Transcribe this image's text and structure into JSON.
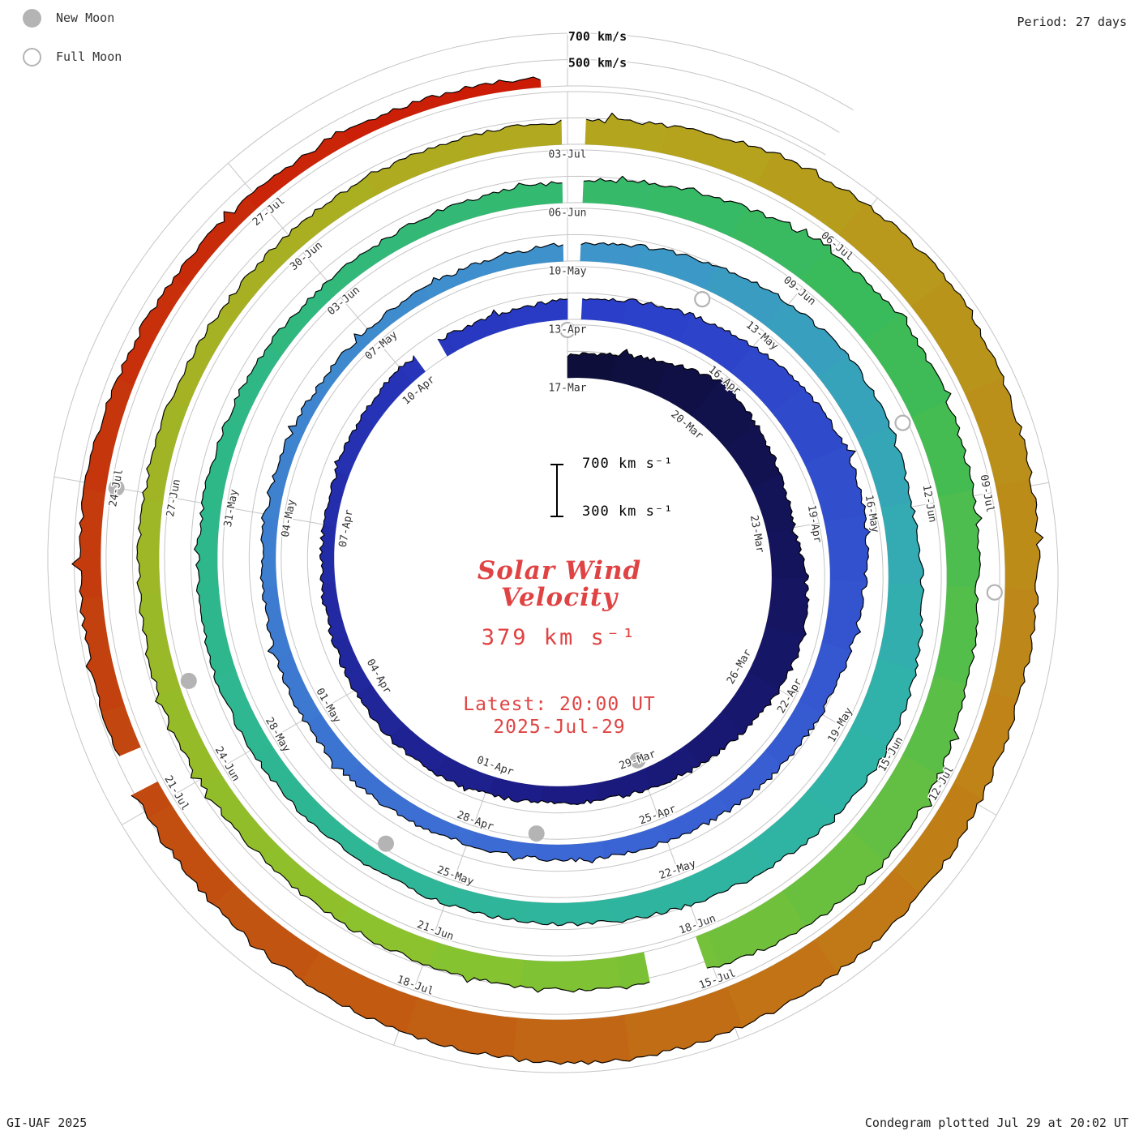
{
  "legend": {
    "new_moon": "New Moon",
    "full_moon": "Full Moon"
  },
  "header": {
    "period": "Period: 27 days"
  },
  "footer": {
    "left": "GI-UAF 2025",
    "right": "Condegram plotted Jul 29 at 20:02 UT"
  },
  "scale_bar": {
    "top": "700 km s⁻¹",
    "bottom": "300 km s⁻¹"
  },
  "center": {
    "title_line1": "Solar Wind",
    "title_line2": "Velocity",
    "value": "379 km s⁻¹",
    "latest_line1": "Latest: 20:00 UT",
    "latest_line2": "2025-Jul-29"
  },
  "chart_data": {
    "type": "spiral-polar-condegram",
    "title": "Solar Wind Velocity",
    "units": "km/s",
    "year": 2025,
    "period_days": 27,
    "start_label": "17-Mar",
    "end_label": "29-Jul",
    "latest": {
      "value_km_s": 379,
      "time_ut": "20:00 UT",
      "date": "2025-Jul-29"
    },
    "radial_axis": {
      "min": 300,
      "max": 700,
      "ring_values": [
        300,
        500,
        700
      ],
      "ring_text": [
        "700 km/s",
        "500 km/s"
      ]
    },
    "date_labels": [
      {
        "label": "17-Mar",
        "day": 0
      },
      {
        "label": "20-Mar",
        "day": 3
      },
      {
        "label": "23-Mar",
        "day": 6
      },
      {
        "label": "26-Mar",
        "day": 9
      },
      {
        "label": "29-Mar",
        "day": 12
      },
      {
        "label": "01-Apr",
        "day": 15
      },
      {
        "label": "04-Apr",
        "day": 18
      },
      {
        "label": "07-Apr",
        "day": 21
      },
      {
        "label": "10-Apr",
        "day": 24
      },
      {
        "label": "13-Apr",
        "day": 27
      },
      {
        "label": "16-Apr",
        "day": 30
      },
      {
        "label": "19-Apr",
        "day": 33
      },
      {
        "label": "22-Apr",
        "day": 36
      },
      {
        "label": "25-Apr",
        "day": 39
      },
      {
        "label": "28-Apr",
        "day": 42
      },
      {
        "label": "01-May",
        "day": 45
      },
      {
        "label": "04-May",
        "day": 48
      },
      {
        "label": "07-May",
        "day": 51
      },
      {
        "label": "10-May",
        "day": 54
      },
      {
        "label": "13-May",
        "day": 57
      },
      {
        "label": "16-May",
        "day": 60
      },
      {
        "label": "19-May",
        "day": 63
      },
      {
        "label": "22-May",
        "day": 66
      },
      {
        "label": "25-May",
        "day": 69
      },
      {
        "label": "28-May",
        "day": 72
      },
      {
        "label": "31-May",
        "day": 75
      },
      {
        "label": "03-Jun",
        "day": 78
      },
      {
        "label": "06-Jun",
        "day": 81
      },
      {
        "label": "09-Jun",
        "day": 84
      },
      {
        "label": "12-Jun",
        "day": 87
      },
      {
        "label": "15-Jun",
        "day": 90
      },
      {
        "label": "18-Jun",
        "day": 93
      },
      {
        "label": "21-Jun",
        "day": 96
      },
      {
        "label": "24-Jun",
        "day": 99
      },
      {
        "label": "27-Jun",
        "day": 102
      },
      {
        "label": "30-Jun",
        "day": 105
      },
      {
        "label": "03-Jul",
        "day": 108
      },
      {
        "label": "06-Jul",
        "day": 111
      },
      {
        "label": "09-Jul",
        "day": 114
      },
      {
        "label": "12-Jul",
        "day": 117
      },
      {
        "label": "15-Jul",
        "day": 120
      },
      {
        "label": "18-Jul",
        "day": 123
      },
      {
        "label": "21-Jul",
        "day": 126
      },
      {
        "label": "24-Jul",
        "day": 129
      },
      {
        "label": "27-Jul",
        "day": 132
      }
    ],
    "daily_velocity_km_s": [
      470,
      500,
      560,
      640,
      590,
      540,
      500,
      560,
      600,
      570,
      520,
      480,
      450,
      430,
      420,
      440,
      460,
      450,
      430,
      410,
      400,
      390,
      400,
      420,
      440,
      430,
      420,
      450,
      480,
      520,
      560,
      600,
      640,
      610,
      560,
      520,
      490,
      470,
      450,
      430,
      420,
      410,
      400,
      420,
      440,
      430,
      420,
      410,
      400,
      390,
      380,
      380,
      390,
      400,
      430,
      460,
      500,
      540,
      580,
      560,
      530,
      560,
      600,
      620,
      580,
      540,
      500,
      470,
      450,
      440,
      430,
      440,
      450,
      460,
      450,
      440,
      430,
      420,
      410,
      420,
      430,
      460,
      500,
      550,
      600,
      630,
      600,
      560,
      530,
      560,
      610,
      650,
      620,
      570,
      530,
      500,
      480,
      460,
      450,
      460,
      470,
      460,
      450,
      440,
      430,
      440,
      450,
      460,
      470,
      510,
      560,
      610,
      640,
      610,
      570,
      540,
      520,
      540,
      580,
      600,
      620,
      640,
      610,
      580,
      550,
      520,
      490,
      470,
      460,
      450,
      430,
      420,
      400,
      390,
      379
    ],
    "gaps_days": [
      [
        24.3,
        24.75
      ],
      [
        93.1,
        93.65
      ],
      [
        126.2,
        126.5
      ]
    ],
    "wrap_gap_days": [
      27,
      54,
      81,
      108
    ],
    "moons": {
      "new": [
        {
          "label": "29-Mar",
          "day": 12
        },
        {
          "label": "27-Apr",
          "day": 41
        },
        {
          "label": "26-May",
          "day": 70
        },
        {
          "label": "25-Jun",
          "day": 100
        },
        {
          "label": "24-Jul",
          "day": 129
        }
      ],
      "full": [
        {
          "label": "13-Apr",
          "day": 27
        },
        {
          "label": "12-May",
          "day": 56
        },
        {
          "label": "11-Jun",
          "day": 86
        },
        {
          "label": "10-Jul",
          "day": 115
        }
      ]
    },
    "colors": {
      "grid": "#c5c5c5",
      "trace": "#000000",
      "moon": "#b4b4b4",
      "accent_red": "#e04343",
      "label_text": "#333333",
      "stops": [
        {
          "t": 0,
          "c": "#0d0d38"
        },
        {
          "t": 14,
          "c": "#1c1c86"
        },
        {
          "t": 27,
          "c": "#2a3cc8"
        },
        {
          "t": 40,
          "c": "#3b66d4"
        },
        {
          "t": 54,
          "c": "#3f93cc"
        },
        {
          "t": 63,
          "c": "#2fb3a8"
        },
        {
          "t": 76,
          "c": "#2eb887"
        },
        {
          "t": 85,
          "c": "#3bbb58"
        },
        {
          "t": 96,
          "c": "#8ac32e"
        },
        {
          "t": 108,
          "c": "#b3a81e"
        },
        {
          "t": 118,
          "c": "#c17c17"
        },
        {
          "t": 127,
          "c": "#c2440f"
        },
        {
          "t": 134,
          "c": "#cc1c06"
        }
      ]
    }
  }
}
